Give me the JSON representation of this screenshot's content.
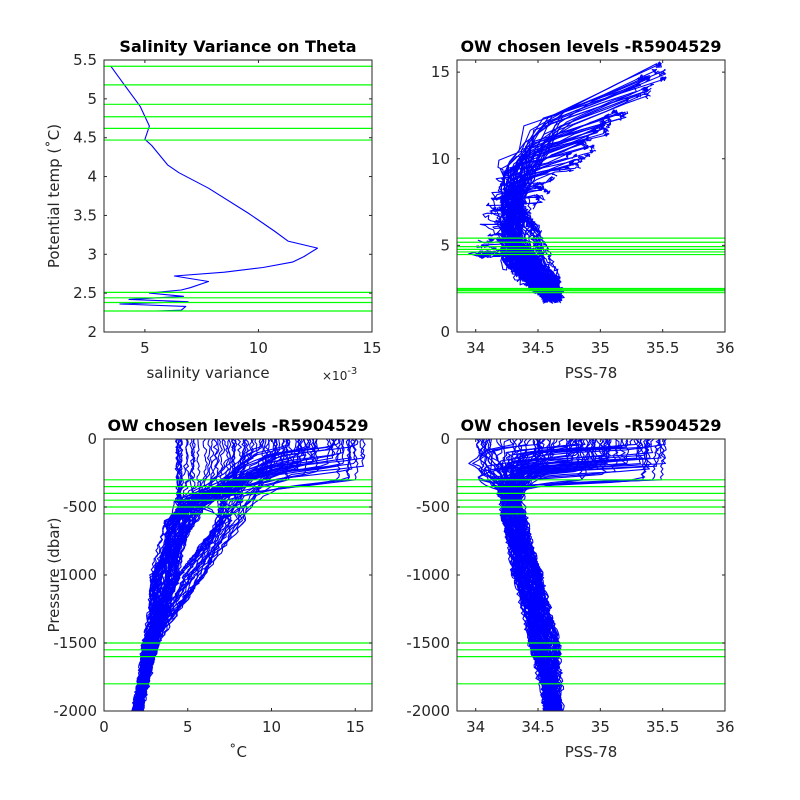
{
  "chart_data": [
    {
      "type": "line",
      "title": "Salinity Variance on Theta",
      "xlabel": "salinity variance",
      "x_exponent": "×10-3",
      "ylabel": "Potential temp (˚C)",
      "xlim": [
        3.2,
        15
      ],
      "ylim": [
        2,
        5.5
      ],
      "xticks": [
        "5",
        "10",
        "15"
      ],
      "xtick_values": [
        5,
        10,
        15
      ],
      "yticks": [
        "2",
        "2.5",
        "3",
        "3.5",
        "4",
        "4.5",
        "5",
        "5.5"
      ],
      "ytick_values": [
        2,
        2.5,
        3,
        3.5,
        4,
        4.5,
        5,
        5.5
      ],
      "series": [
        {
          "color": "#0000ff",
          "x": [
            3.5,
            4.1,
            4.8,
            5.2,
            5.0,
            5.3,
            6.0,
            6.5,
            7.8,
            9.6,
            10.7,
            11.3,
            12.6,
            12.0,
            11.5,
            10.2,
            8.5,
            6.3,
            7.8,
            7.0,
            6.6,
            5.2,
            6.7,
            4.3,
            6.9,
            3.9,
            6.8,
            6.6,
            5.5
          ],
          "y": [
            5.42,
            5.18,
            4.9,
            4.65,
            4.48,
            4.4,
            4.15,
            4.05,
            3.85,
            3.52,
            3.3,
            3.17,
            3.08,
            2.97,
            2.9,
            2.83,
            2.77,
            2.72,
            2.65,
            2.57,
            2.54,
            2.5,
            2.46,
            2.42,
            2.39,
            2.36,
            2.33,
            2.28,
            2.27
          ]
        }
      ],
      "levels": [
        5.42,
        5.18,
        4.93,
        4.77,
        4.62,
        4.47,
        2.51,
        2.44,
        2.38,
        2.27
      ],
      "level_color": "#00ff00"
    },
    {
      "type": "line",
      "title": "OW chosen levels -R5904529",
      "xlabel": "PSS-78",
      "ylabel": "",
      "xlim": [
        33.85,
        36
      ],
      "ylim": [
        0,
        15.7
      ],
      "xticks": [
        "34",
        "34.5",
        "35",
        "35.5",
        "36"
      ],
      "xtick_values": [
        34,
        34.5,
        35,
        35.5,
        36
      ],
      "yticks": [
        "0",
        "5",
        "10",
        "15"
      ],
      "ytick_values": [
        0,
        5,
        10,
        15
      ],
      "profile_color": "#0000ff",
      "levels": [
        5.42,
        5.18,
        4.93,
        4.77,
        4.62,
        4.47,
        2.51,
        2.44,
        2.38,
        2.27
      ],
      "level_color": "#00ff00"
    },
    {
      "type": "line",
      "title": "OW chosen levels -R5904529",
      "xlabel": "˚C",
      "ylabel": "Pressure (dbar)",
      "xlim": [
        0,
        16
      ],
      "ylim": [
        -2000,
        0
      ],
      "xticks": [
        "0",
        "5",
        "10",
        "15"
      ],
      "xtick_values": [
        0,
        5,
        10,
        15
      ],
      "yticks": [
        "-2000",
        "-1500",
        "-1000",
        "-500",
        "0"
      ],
      "ytick_values": [
        -2000,
        -1500,
        -1000,
        -500,
        0
      ],
      "profile_color": "#0000ff",
      "levels": [
        -300,
        -350,
        -400,
        -450,
        -500,
        -550,
        -1500,
        -1550,
        -1600,
        -1800
      ],
      "level_color": "#00ff00"
    },
    {
      "type": "line",
      "title": "OW chosen levels -R5904529",
      "xlabel": "PSS-78",
      "ylabel": "",
      "xlim": [
        33.85,
        36
      ],
      "ylim": [
        -2000,
        0
      ],
      "xticks": [
        "34",
        "34.5",
        "35",
        "35.5",
        "36"
      ],
      "xtick_values": [
        34,
        34.5,
        35,
        35.5,
        36
      ],
      "yticks": [
        "-2000",
        "-1500",
        "-1000",
        "-500",
        "0"
      ],
      "ytick_values": [
        -2000,
        -1500,
        -1000,
        -500,
        0
      ],
      "profile_color": "#0000ff",
      "levels": [
        -300,
        -350,
        -400,
        -450,
        -500,
        -550,
        -1500,
        -1550,
        -1600,
        -1800
      ],
      "level_color": "#00ff00"
    }
  ]
}
